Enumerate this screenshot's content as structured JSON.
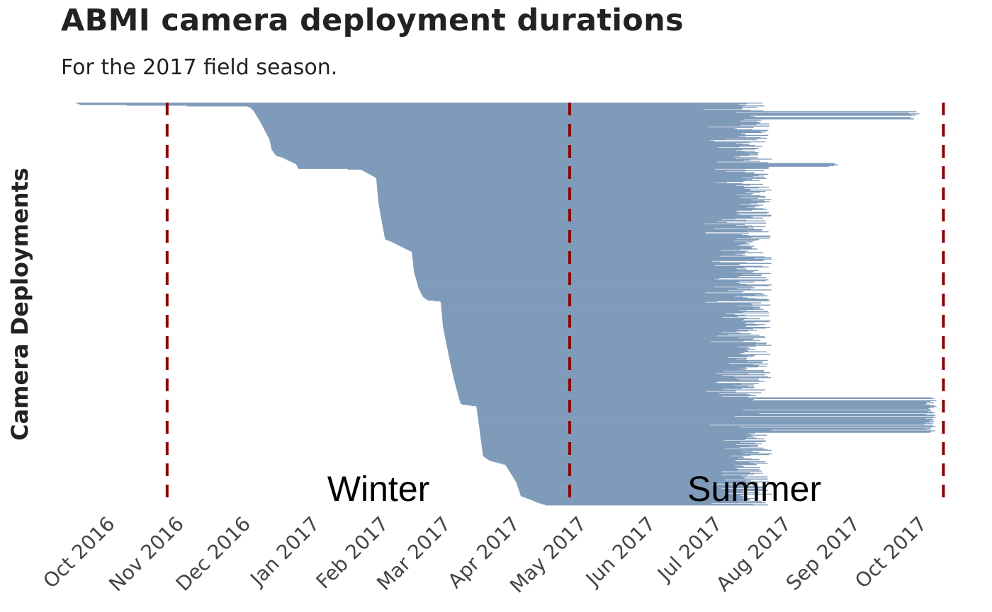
{
  "chart_data": {
    "type": "bar",
    "orientation": "horizontal",
    "title": "ABMI camera deployment durations",
    "subtitle": "For the 2017 field season.",
    "ylabel": "Camera Deployments",
    "xlabel": "",
    "xlim": [
      "2016-09-12",
      "2017-10-12"
    ],
    "x_ticks": [
      {
        "date": "2016-10-01",
        "label": "Oct 2016"
      },
      {
        "date": "2016-11-01",
        "label": "Nov 2016"
      },
      {
        "date": "2016-12-01",
        "label": "Dec 2016"
      },
      {
        "date": "2017-01-01",
        "label": "Jan 2017"
      },
      {
        "date": "2017-02-01",
        "label": "Feb 2017"
      },
      {
        "date": "2017-03-01",
        "label": "Mar 2017"
      },
      {
        "date": "2017-04-01",
        "label": "Apr 2017"
      },
      {
        "date": "2017-05-01",
        "label": "May 2017"
      },
      {
        "date": "2017-06-01",
        "label": "Jun 2017"
      },
      {
        "date": "2017-07-01",
        "label": "Jul 2017"
      },
      {
        "date": "2017-08-01",
        "label": "Aug 2017"
      },
      {
        "date": "2017-09-01",
        "label": "Sep 2017"
      },
      {
        "date": "2017-10-01",
        "label": "Oct 2017"
      }
    ],
    "reference_lines": [
      "2016-10-24",
      "2017-04-23",
      "2017-10-08"
    ],
    "annotations": [
      {
        "text": "Winter",
        "date": "2017-01-27"
      },
      {
        "text": "Summer",
        "date": "2017-07-15"
      }
    ],
    "deployment_count": 560,
    "start_curve": [
      [
        0.0,
        "2016-09-13"
      ],
      [
        0.004,
        "2016-09-15"
      ],
      [
        0.009,
        "2016-11-30"
      ],
      [
        0.02,
        "2016-12-02"
      ],
      [
        0.048,
        "2016-12-05"
      ],
      [
        0.09,
        "2016-12-09"
      ],
      [
        0.116,
        "2016-12-10"
      ],
      [
        0.131,
        "2016-12-12"
      ],
      [
        0.136,
        "2016-12-15"
      ],
      [
        0.152,
        "2016-12-21"
      ],
      [
        0.163,
        "2016-12-22"
      ],
      [
        0.165,
        "2017-01-19"
      ],
      [
        0.186,
        "2017-01-26"
      ],
      [
        0.248,
        "2017-01-27"
      ],
      [
        0.31,
        "2017-01-29"
      ],
      [
        0.339,
        "2017-01-30"
      ],
      [
        0.343,
        "2017-02-01"
      ],
      [
        0.37,
        "2017-02-11"
      ],
      [
        0.42,
        "2017-02-12"
      ],
      [
        0.46,
        "2017-02-14"
      ],
      [
        0.482,
        "2017-02-16"
      ],
      [
        0.49,
        "2017-02-18"
      ],
      [
        0.494,
        "2017-02-24"
      ],
      [
        0.556,
        "2017-02-25"
      ],
      [
        0.639,
        "2017-02-28"
      ],
      [
        0.688,
        "2017-03-02"
      ],
      [
        0.73,
        "2017-03-04"
      ],
      [
        0.749,
        "2017-03-05"
      ],
      [
        0.755,
        "2017-03-12"
      ],
      [
        0.793,
        "2017-03-13"
      ],
      [
        0.878,
        "2017-03-15"
      ],
      [
        0.89,
        "2017-03-18"
      ],
      [
        0.9,
        "2017-03-25"
      ],
      [
        0.908,
        "2017-03-26"
      ],
      [
        0.944,
        "2017-03-30"
      ],
      [
        0.978,
        "2017-04-01"
      ],
      [
        0.986,
        "2017-04-05"
      ],
      [
        0.995,
        "2017-04-09"
      ],
      [
        1.0,
        "2017-04-12"
      ]
    ],
    "typical_end_range": [
      "2017-06-22",
      "2017-07-23"
    ],
    "late_end_groups": [
      {
        "rows": [
          0.02,
          0.04
        ],
        "end": "2017-09-28"
      },
      {
        "rows": [
          0.148,
          0.158
        ],
        "end": "2017-08-22"
      },
      {
        "rows": [
          0.73,
          0.82
        ],
        "end": "2017-10-05"
      }
    ],
    "bar_color": "#7f9bba",
    "reference_line_color": "#8b0000"
  }
}
